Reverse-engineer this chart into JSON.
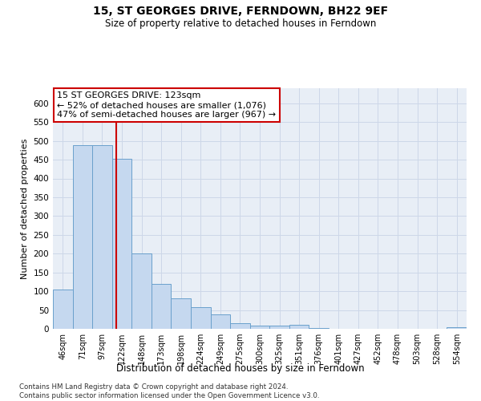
{
  "title": "15, ST GEORGES DRIVE, FERNDOWN, BH22 9EF",
  "subtitle": "Size of property relative to detached houses in Ferndown",
  "xlabel": "Distribution of detached houses by size in Ferndown",
  "ylabel": "Number of detached properties",
  "bar_categories": [
    "46sqm",
    "71sqm",
    "97sqm",
    "122sqm",
    "148sqm",
    "173sqm",
    "198sqm",
    "224sqm",
    "249sqm",
    "275sqm",
    "300sqm",
    "325sqm",
    "351sqm",
    "376sqm",
    "401sqm",
    "427sqm",
    "452sqm",
    "478sqm",
    "503sqm",
    "528sqm",
    "554sqm"
  ],
  "bar_values": [
    105,
    488,
    488,
    452,
    200,
    120,
    82,
    57,
    38,
    14,
    9,
    9,
    10,
    2,
    1,
    1,
    0,
    0,
    0,
    0,
    4
  ],
  "bar_color": "#c5d8ef",
  "bar_edge_color": "#6aa0cc",
  "annotation_text": "15 ST GEORGES DRIVE: 123sqm\n← 52% of detached houses are smaller (1,076)\n47% of semi-detached houses are larger (967) →",
  "vline_x_index": 2.72,
  "annotation_box_color": "#ffffff",
  "annotation_box_edge": "#cc0000",
  "grid_color": "#cdd7e8",
  "background_color": "#e8eef6",
  "footer": "Contains HM Land Registry data © Crown copyright and database right 2024.\nContains public sector information licensed under the Open Government Licence v3.0.",
  "ylim": [
    0,
    640
  ],
  "yticks": [
    0,
    50,
    100,
    150,
    200,
    250,
    300,
    350,
    400,
    450,
    500,
    550,
    600
  ]
}
